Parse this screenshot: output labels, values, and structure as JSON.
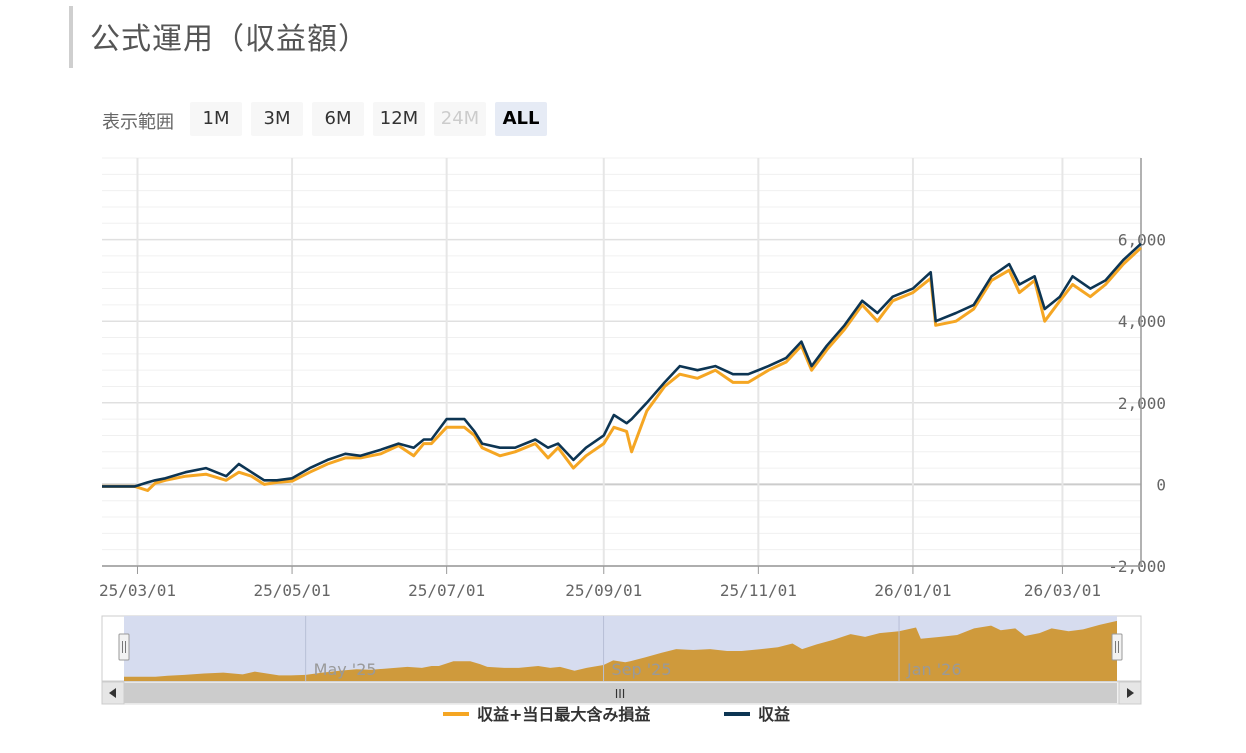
{
  "page": {
    "title": "公式運用（収益額）"
  },
  "range_selector": {
    "label": "表示範囲",
    "buttons": [
      {
        "label": "1M",
        "state": "normal"
      },
      {
        "label": "3M",
        "state": "normal"
      },
      {
        "label": "6M",
        "state": "normal"
      },
      {
        "label": "12M",
        "state": "normal"
      },
      {
        "label": "24M",
        "state": "disabled"
      },
      {
        "label": "ALL",
        "state": "active"
      }
    ]
  },
  "navigator": {
    "labels": [
      "May '25",
      "Sep '25",
      "Jan '26"
    ],
    "scrollbar_grip": "III"
  },
  "chart_data": {
    "type": "line",
    "title": "",
    "xlabel": "",
    "ylabel": "",
    "x_ticks": [
      "25/03/01",
      "25/05/01",
      "25/07/01",
      "25/09/01",
      "25/11/01",
      "26/01/01",
      "26/03/01"
    ],
    "y_ticks": [
      "-2,000",
      "0",
      "2,000",
      "4,000",
      "6,000"
    ],
    "ylim": [
      -2000,
      8000
    ],
    "xlim": [
      "2025-02-15",
      "2026-04-01"
    ],
    "grid": true,
    "legend_position": "bottom",
    "colors": {
      "収益+当日最大含み損益": "#f5a623",
      "収益": "#0d3553",
      "navigator_fill": "#cf9a3c",
      "navigator_bg": "#d6dcef"
    },
    "series": [
      {
        "name": "収益+当日最大含み損益",
        "x": [
          "2025-02-15",
          "2025-02-23",
          "2025-02-28",
          "2025-03-05",
          "2025-03-08",
          "2025-03-12",
          "2025-03-20",
          "2025-03-28",
          "2025-04-05",
          "2025-04-10",
          "2025-04-15",
          "2025-04-20",
          "2025-04-25",
          "2025-05-01",
          "2025-05-08",
          "2025-05-15",
          "2025-05-22",
          "2025-05-28",
          "2025-06-05",
          "2025-06-12",
          "2025-06-18",
          "2025-06-22",
          "2025-06-25",
          "2025-07-01",
          "2025-07-08",
          "2025-07-12",
          "2025-07-15",
          "2025-07-22",
          "2025-07-28",
          "2025-08-05",
          "2025-08-10",
          "2025-08-14",
          "2025-08-20",
          "2025-08-25",
          "2025-09-01",
          "2025-09-05",
          "2025-09-10",
          "2025-09-12",
          "2025-09-18",
          "2025-09-25",
          "2025-10-01",
          "2025-10-08",
          "2025-10-15",
          "2025-10-22",
          "2025-10-28",
          "2025-11-05",
          "2025-11-12",
          "2025-11-18",
          "2025-11-22",
          "2025-11-28",
          "2025-12-05",
          "2025-12-12",
          "2025-12-18",
          "2025-12-24",
          "2026-01-01",
          "2026-01-08",
          "2026-01-10",
          "2026-01-18",
          "2026-01-25",
          "2026-02-01",
          "2026-02-08",
          "2026-02-12",
          "2026-02-18",
          "2026-02-22",
          "2026-02-28",
          "2026-03-05",
          "2026-03-12",
          "2026-03-18",
          "2026-03-25",
          "2026-04-01"
        ],
        "values": [
          -50,
          -50,
          -50,
          -150,
          30,
          100,
          200,
          250,
          100,
          300,
          200,
          0,
          50,
          80,
          300,
          500,
          650,
          650,
          750,
          950,
          700,
          1000,
          1000,
          1400,
          1400,
          1200,
          900,
          700,
          800,
          1000,
          650,
          900,
          400,
          700,
          1000,
          1400,
          1300,
          800,
          1800,
          2400,
          2700,
          2600,
          2800,
          2500,
          2500,
          2800,
          3000,
          3400,
          2800,
          3300,
          3800,
          4400,
          4000,
          4500,
          4700,
          5050,
          3900,
          4000,
          4300,
          5000,
          5250,
          4700,
          5000,
          4000,
          4500,
          4900,
          4600,
          4900,
          5400,
          5800
        ]
      },
      {
        "name": "収益",
        "x": [
          "2025-02-15",
          "2025-02-23",
          "2025-02-28",
          "2025-03-05",
          "2025-03-08",
          "2025-03-12",
          "2025-03-20",
          "2025-03-28",
          "2025-04-05",
          "2025-04-10",
          "2025-04-15",
          "2025-04-20",
          "2025-04-25",
          "2025-05-01",
          "2025-05-08",
          "2025-05-15",
          "2025-05-22",
          "2025-05-28",
          "2025-06-05",
          "2025-06-12",
          "2025-06-18",
          "2025-06-22",
          "2025-06-25",
          "2025-07-01",
          "2025-07-08",
          "2025-07-12",
          "2025-07-15",
          "2025-07-22",
          "2025-07-28",
          "2025-08-05",
          "2025-08-10",
          "2025-08-14",
          "2025-08-20",
          "2025-08-25",
          "2025-09-01",
          "2025-09-05",
          "2025-09-10",
          "2025-09-12",
          "2025-09-18",
          "2025-09-25",
          "2025-10-01",
          "2025-10-08",
          "2025-10-15",
          "2025-10-22",
          "2025-10-28",
          "2025-11-05",
          "2025-11-12",
          "2025-11-18",
          "2025-11-22",
          "2025-11-28",
          "2025-12-05",
          "2025-12-12",
          "2025-12-18",
          "2025-12-24",
          "2026-01-01",
          "2026-01-08",
          "2026-01-10",
          "2026-01-18",
          "2026-01-25",
          "2026-02-01",
          "2026-02-08",
          "2026-02-12",
          "2026-02-18",
          "2026-02-22",
          "2026-02-28",
          "2026-03-05",
          "2026-03-12",
          "2026-03-18",
          "2026-03-25",
          "2026-04-01"
        ],
        "values": [
          -50,
          -50,
          -50,
          50,
          100,
          150,
          300,
          400,
          200,
          500,
          300,
          100,
          100,
          150,
          400,
          600,
          750,
          700,
          850,
          1000,
          900,
          1100,
          1100,
          1600,
          1600,
          1300,
          1000,
          900,
          900,
          1100,
          900,
          1000,
          600,
          900,
          1200,
          1700,
          1500,
          1600,
          2000,
          2500,
          2900,
          2800,
          2900,
          2700,
          2700,
          2900,
          3100,
          3500,
          2900,
          3400,
          3900,
          4500,
          4200,
          4600,
          4800,
          5200,
          4000,
          4200,
          4400,
          5100,
          5400,
          4900,
          5100,
          4300,
          4600,
          5100,
          4800,
          5000,
          5500,
          5900
        ]
      }
    ]
  }
}
